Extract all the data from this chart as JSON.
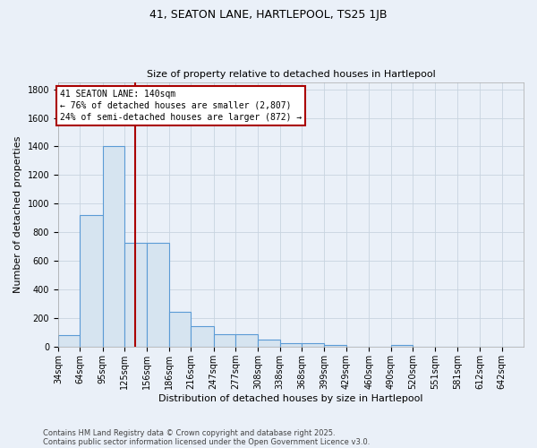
{
  "title1": "41, SEATON LANE, HARTLEPOOL, TS25 1JB",
  "title2": "Size of property relative to detached houses in Hartlepool",
  "xlabel": "Distribution of detached houses by size in Hartlepool",
  "ylabel": "Number of detached properties",
  "bin_labels": [
    "34sqm",
    "64sqm",
    "95sqm",
    "125sqm",
    "156sqm",
    "186sqm",
    "216sqm",
    "247sqm",
    "277sqm",
    "308sqm",
    "338sqm",
    "368sqm",
    "399sqm",
    "429sqm",
    "460sqm",
    "490sqm",
    "520sqm",
    "551sqm",
    "581sqm",
    "612sqm",
    "642sqm"
  ],
  "bin_lefts": [
    34,
    64,
    95,
    125,
    156,
    186,
    216,
    247,
    277,
    308,
    338,
    368,
    399,
    429,
    460,
    490,
    520,
    551,
    581,
    612,
    642
  ],
  "bar_heights": [
    85,
    920,
    1400,
    730,
    730,
    245,
    145,
    90,
    90,
    50,
    25,
    25,
    15,
    0,
    0,
    15,
    0,
    0,
    0,
    0,
    0
  ],
  "bar_color": "#d6e4f0",
  "bar_edge_color": "#5b9bd5",
  "annotation_text": "41 SEATON LANE: 140sqm\n← 76% of detached houses are smaller (2,807)\n24% of semi-detached houses are larger (872) →",
  "annotation_box_color": "white",
  "annotation_border_color": "#aa0000",
  "red_line_x": 140,
  "red_line_color": "#aa0000",
  "ylim": [
    0,
    1850
  ],
  "yticks": [
    0,
    200,
    400,
    600,
    800,
    1000,
    1200,
    1400,
    1600,
    1800
  ],
  "xlim_left": 34,
  "xlim_right": 672,
  "footer1": "Contains HM Land Registry data © Crown copyright and database right 2025.",
  "footer2": "Contains public sector information licensed under the Open Government Licence v3.0.",
  "bg_color": "#eaf0f8",
  "grid_color": "#c8d4e0",
  "title1_fontsize": 9,
  "title2_fontsize": 8,
  "ylabel_fontsize": 8,
  "xlabel_fontsize": 8,
  "tick_fontsize": 7,
  "annotation_fontsize": 7
}
